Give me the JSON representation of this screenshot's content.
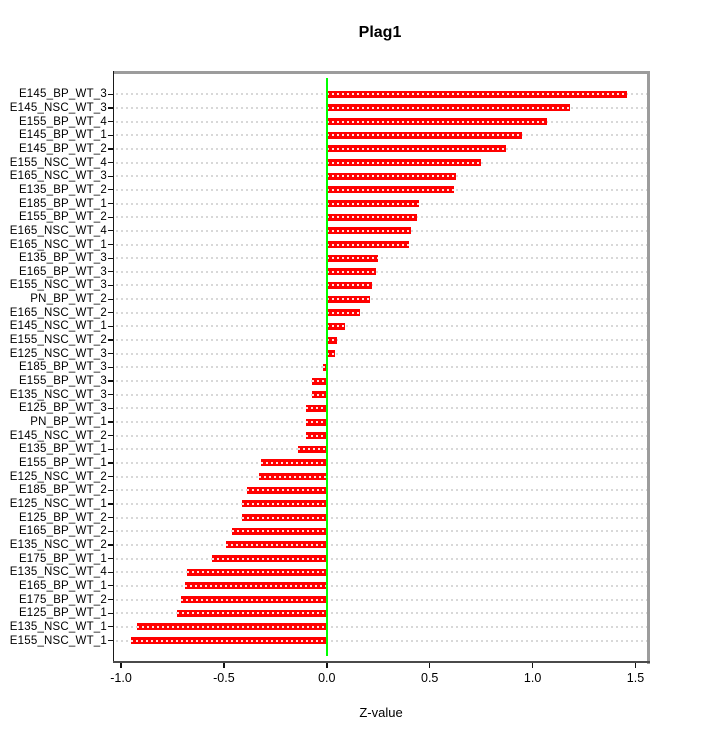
{
  "title": "Plag1",
  "axis": {
    "xlabel": "Z-value",
    "xtick_labels": [
      "-1.0",
      "-0.5",
      "0.0",
      "0.5",
      "1.0",
      "1.5"
    ]
  },
  "colors": {
    "bar": "#ff0000",
    "bar_inner_dash": "rgba(255,255,255,0.88)",
    "zero_line": "#00ff00",
    "grid": "#d8d8d8",
    "box": "#9c9c9c",
    "axis_left": "#1a1a1a",
    "axis_bottom": "#4a4a4a",
    "text": "#000000",
    "background": "#ffffff"
  },
  "chart_data": {
    "type": "bar",
    "orientation": "horizontal",
    "title": "Plag1",
    "xlabel": "Z-value",
    "xlim": [
      -1.05,
      1.55
    ],
    "xticks": [
      -1.0,
      -0.5,
      0.0,
      0.5,
      1.0,
      1.5
    ],
    "grid": "light-gray dashed horizontal line per category, white dashed stripe through bars",
    "legend": "none",
    "order": "values sorted descending from top to bottom",
    "zero_reference_line": true,
    "categories": [
      "E145_BP_WT_3",
      "E145_NSC_WT_3",
      "E155_BP_WT_4",
      "E145_BP_WT_1",
      "E145_BP_WT_2",
      "E155_NSC_WT_4",
      "E165_NSC_WT_3",
      "E135_BP_WT_2",
      "E185_BP_WT_1",
      "E155_BP_WT_2",
      "E165_NSC_WT_4",
      "E165_NSC_WT_1",
      "E135_BP_WT_3",
      "E165_BP_WT_3",
      "E155_NSC_WT_3",
      "PN_BP_WT_2",
      "E165_NSC_WT_2",
      "E145_NSC_WT_1",
      "E155_NSC_WT_2",
      "E125_NSC_WT_3",
      "E185_BP_WT_3",
      "E155_BP_WT_3",
      "E135_NSC_WT_3",
      "E125_BP_WT_3",
      "PN_BP_WT_1",
      "E145_NSC_WT_2",
      "E135_BP_WT_1",
      "E155_BP_WT_1",
      "E125_NSC_WT_2",
      "E185_BP_WT_2",
      "E125_NSC_WT_1",
      "E125_BP_WT_2",
      "E165_BP_WT_2",
      "E135_NSC_WT_2",
      "E175_BP_WT_1",
      "E135_NSC_WT_4",
      "E165_BP_WT_1",
      "E175_BP_WT_2",
      "E125_BP_WT_1",
      "E135_NSC_WT_1",
      "E155_NSC_WT_1"
    ],
    "values": [
      1.46,
      1.18,
      1.07,
      0.95,
      0.87,
      0.75,
      0.63,
      0.62,
      0.45,
      0.44,
      0.41,
      0.4,
      0.25,
      0.24,
      0.22,
      0.21,
      0.16,
      0.09,
      0.05,
      0.04,
      -0.02,
      -0.07,
      -0.07,
      -0.1,
      -0.1,
      -0.1,
      -0.14,
      -0.32,
      -0.33,
      -0.39,
      -0.41,
      -0.41,
      -0.46,
      -0.49,
      -0.56,
      -0.68,
      -0.69,
      -0.71,
      -0.73,
      -0.92,
      -0.95
    ]
  }
}
